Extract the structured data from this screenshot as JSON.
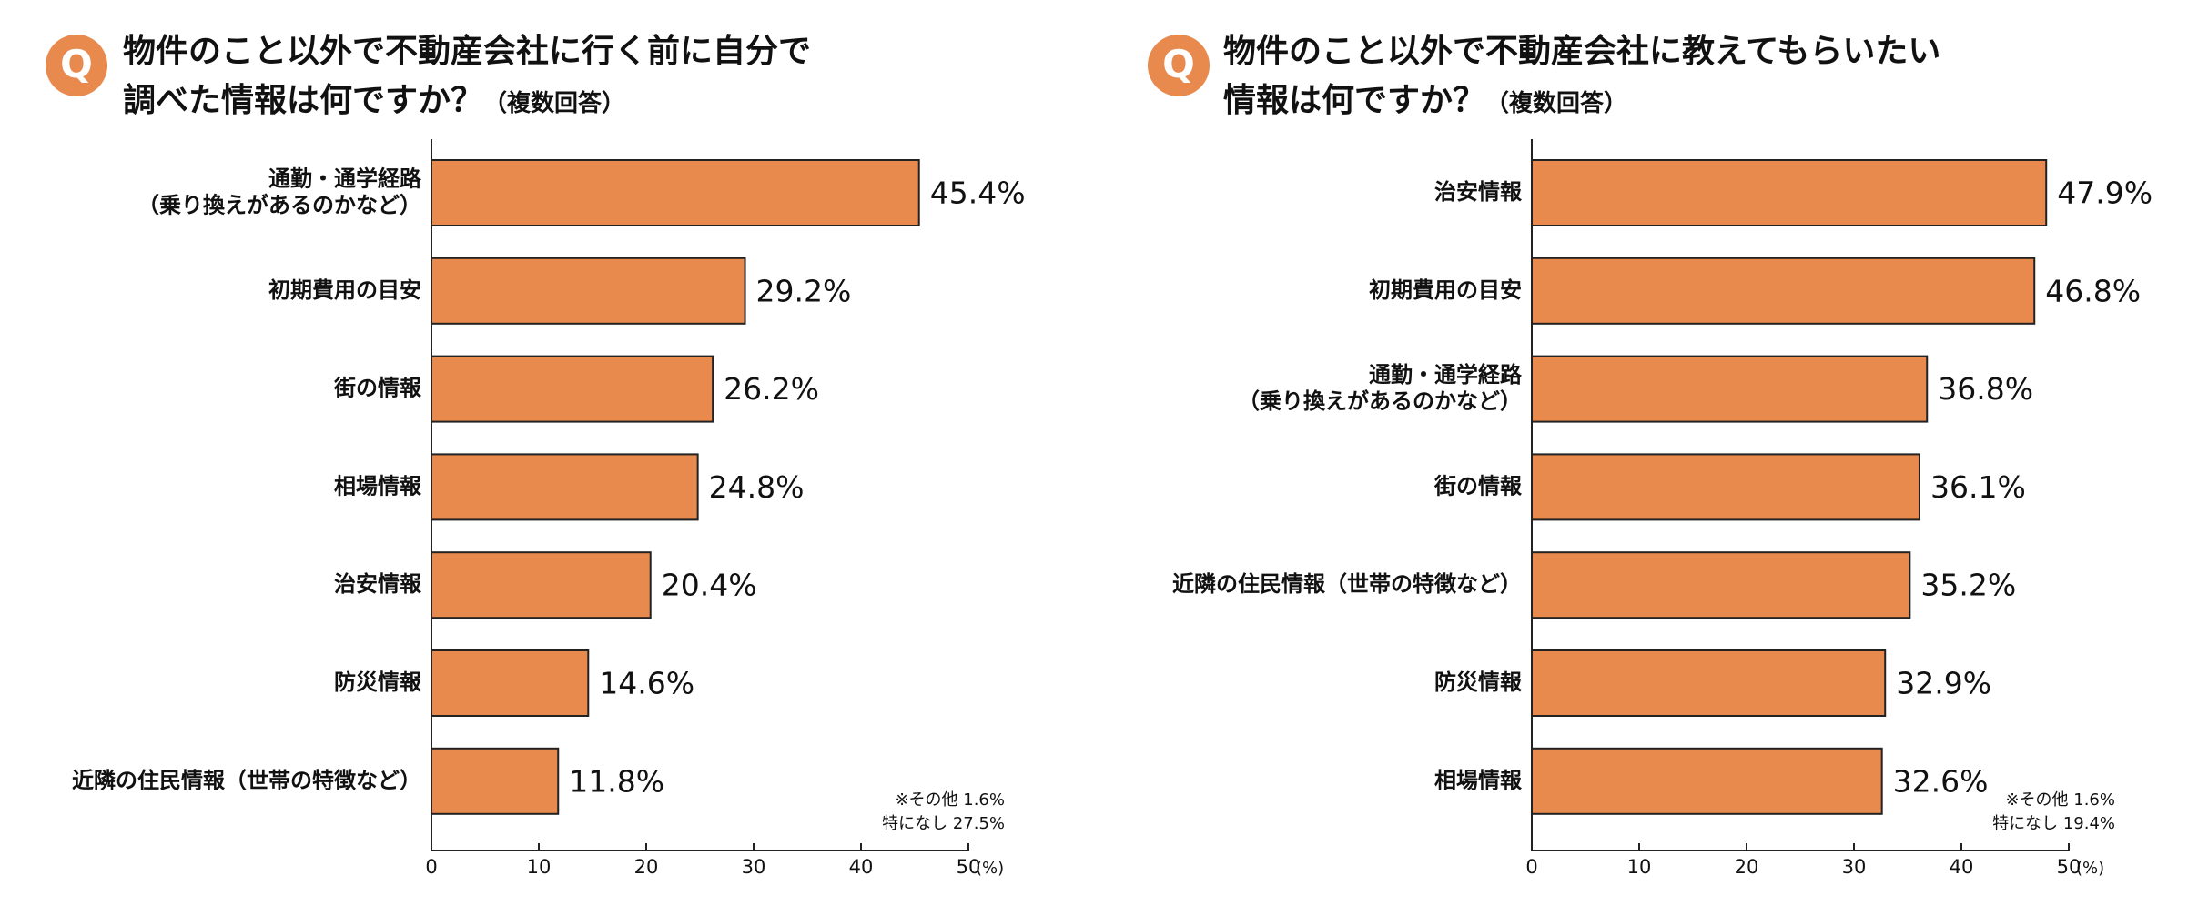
{
  "chart_data": [
    {
      "type": "bar",
      "orientation": "horizontal",
      "title": "物件のこと以外で不動産会社に行く前に自分で\n調べた情報は何ですか？",
      "subtitle": "（複数回答）",
      "categories": [
        "通勤・通学経路\n（乗り換えがあるのかなど）",
        "初期費用の目安",
        "街の情報",
        "相場情報",
        "治安情報",
        "防災情報",
        "近隣の住民情報（世帯の特徴など）"
      ],
      "values": [
        45.4,
        29.2,
        26.2,
        24.8,
        20.4,
        14.6,
        11.8
      ],
      "value_labels": [
        "45.4%",
        "29.2%",
        "26.2%",
        "24.8%",
        "20.4%",
        "14.6%",
        "11.8%"
      ],
      "color": "#e8894e",
      "xlim": [
        0,
        50
      ],
      "xticks": [
        0,
        10,
        20,
        30,
        40,
        50
      ],
      "x_unit": "(%)",
      "annotations": [
        "※その他 1.6%",
        "特になし 27.5%"
      ]
    },
    {
      "type": "bar",
      "orientation": "horizontal",
      "title": "物件のこと以外で不動産会社に教えてもらいたい\n情報は何ですか？",
      "subtitle": "（複数回答）",
      "categories": [
        "治安情報",
        "初期費用の目安",
        "通勤・通学経路\n（乗り換えがあるのかなど）",
        "街の情報",
        "近隣の住民情報（世帯の特徴など）",
        "防災情報",
        "相場情報"
      ],
      "values": [
        47.9,
        46.8,
        36.8,
        36.1,
        35.2,
        32.9,
        32.6
      ],
      "value_labels": [
        "47.9%",
        "46.8%",
        "36.8%",
        "36.1%",
        "35.2%",
        "32.9%",
        "32.6%"
      ],
      "color": "#e8894e",
      "xlim": [
        0,
        50
      ],
      "xticks": [
        0,
        10,
        20,
        30,
        40,
        50
      ],
      "x_unit": "(%)",
      "annotations": [
        "※その他 1.6%",
        "特になし 19.4%"
      ]
    }
  ]
}
